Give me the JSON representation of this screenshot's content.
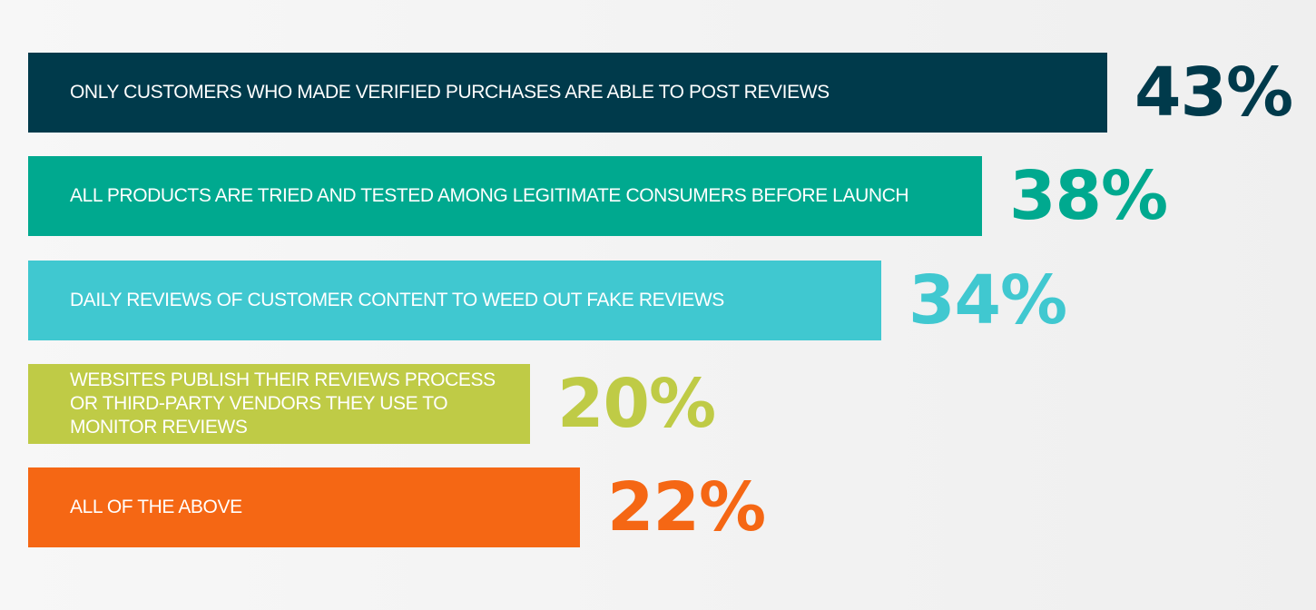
{
  "chart_data": {
    "type": "bar",
    "orientation": "horizontal",
    "title": "",
    "xlabel": "",
    "ylabel": "",
    "categories": [
      "ONLY CUSTOMERS WHO MADE VERIFIED PURCHASES ARE ABLE TO POST REVIEWS",
      "ALL PRODUCTS ARE TRIED AND TESTED AMONG LEGITIMATE CONSUMERS BEFORE LAUNCH",
      "DAILY REVIEWS OF CUSTOMER CONTENT TO WEED OUT FAKE REVIEWS",
      "WEBSITES PUBLISH THEIR REVIEWS PROCESS\nOR THIRD-PARTY VENDORS THEY USE TO\nMONITOR REVIEWS",
      "ALL OF THE ABOVE"
    ],
    "values": [
      43,
      38,
      34,
      20,
      22
    ],
    "value_labels": [
      "43%",
      "38%",
      "34%",
      "20%",
      "22%"
    ],
    "colors": [
      "#003a4b",
      "#00a98f",
      "#40c8d0",
      "#bfcb46",
      "#f56714"
    ],
    "xlim": [
      0,
      100
    ],
    "grid": false,
    "legend": "none"
  }
}
